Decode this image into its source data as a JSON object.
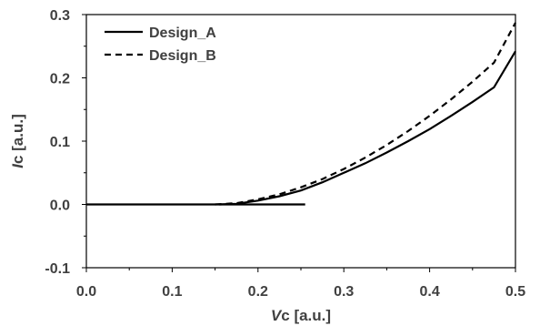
{
  "chart_data": {
    "type": "line",
    "xlabel": {
      "var": "V",
      "sub": "c",
      "unit": " [a.u.]"
    },
    "ylabel": {
      "var": "I",
      "sub": "c",
      "unit": " [a.u.]"
    },
    "xlim": [
      0.0,
      0.5
    ],
    "ylim": [
      -0.1,
      0.3
    ],
    "x_ticks": [
      0.0,
      0.1,
      0.2,
      0.3,
      0.4,
      0.5
    ],
    "x_tick_labels": [
      "0.0",
      "0.1",
      "0.2",
      "0.3",
      "0.4",
      "0.5"
    ],
    "y_ticks": [
      -0.1,
      0.0,
      0.1,
      0.2,
      0.3
    ],
    "y_tick_labels": [
      "-0.1",
      "0.0",
      "0.1",
      "0.2",
      "0.3"
    ],
    "grid": false,
    "legend_position": "top-left",
    "series": [
      {
        "name": "Design_A",
        "style": "solid",
        "color": "#000000",
        "points": [
          [
            0.0,
            0.0
          ],
          [
            0.255,
            0.0
          ]
        ],
        "points_curve": [
          [
            0.155,
            0.0
          ],
          [
            0.175,
            0.001
          ],
          [
            0.2,
            0.006
          ],
          [
            0.225,
            0.013
          ],
          [
            0.25,
            0.022
          ],
          [
            0.275,
            0.035
          ],
          [
            0.3,
            0.05
          ],
          [
            0.325,
            0.065
          ],
          [
            0.35,
            0.082
          ],
          [
            0.375,
            0.1
          ],
          [
            0.4,
            0.119
          ],
          [
            0.425,
            0.14
          ],
          [
            0.45,
            0.162
          ],
          [
            0.475,
            0.185
          ],
          [
            0.5,
            0.242
          ]
        ]
      },
      {
        "name": "Design_B",
        "style": "dashed",
        "color": "#000000",
        "points": [
          [
            0.15,
            0.0
          ],
          [
            0.175,
            0.002
          ],
          [
            0.2,
            0.008
          ],
          [
            0.225,
            0.016
          ],
          [
            0.25,
            0.027
          ],
          [
            0.275,
            0.04
          ],
          [
            0.3,
            0.056
          ],
          [
            0.325,
            0.074
          ],
          [
            0.35,
            0.094
          ],
          [
            0.375,
            0.116
          ],
          [
            0.4,
            0.14
          ],
          [
            0.425,
            0.166
          ],
          [
            0.45,
            0.194
          ],
          [
            0.475,
            0.224
          ],
          [
            0.5,
            0.287
          ]
        ]
      }
    ]
  }
}
